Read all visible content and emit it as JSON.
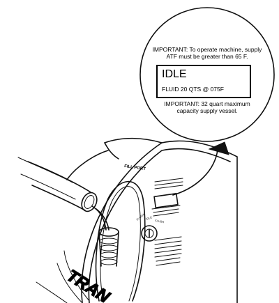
{
  "callout": {
    "notice_top": "IMPORTANT: To operate machine, supply ATF must be greater than 65 F.",
    "display_main": "IDLE",
    "display_sub": "FLUID 20 QTS  @  075F",
    "notice_bottom": "IMPORTANT: 32 quart maximum capacity supply vessel."
  },
  "machine": {
    "fill_port_label": "FILL PORT",
    "brand_text": "TRAN",
    "knob_labels": [
      "FLUSH",
      "IDLE",
      "FLUSH"
    ]
  }
}
